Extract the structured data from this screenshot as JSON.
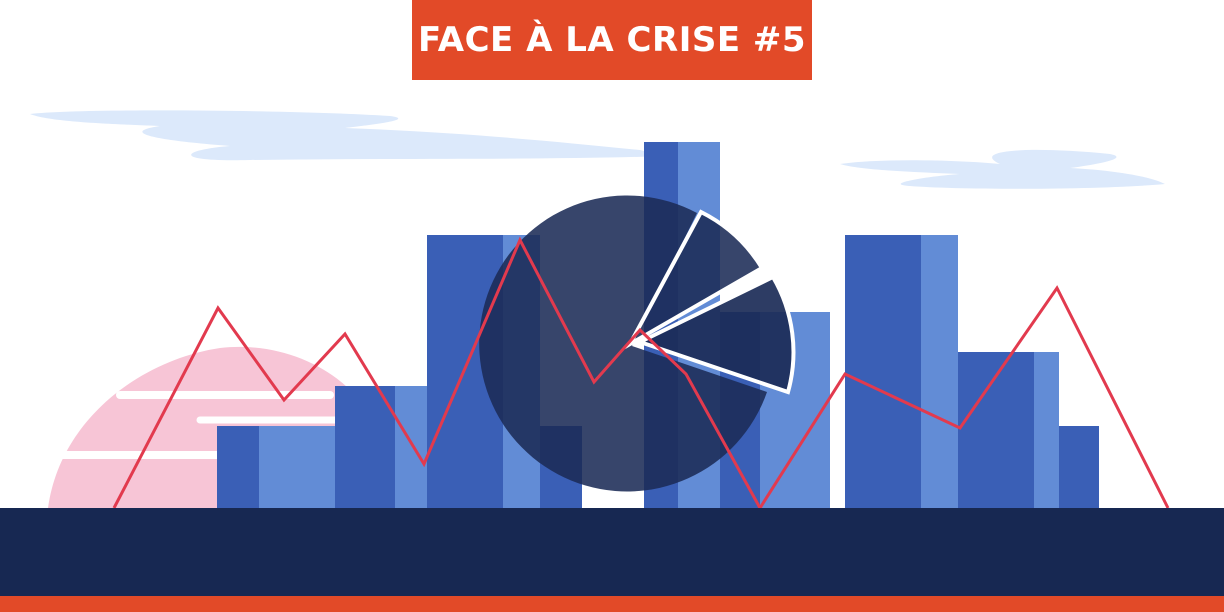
{
  "banner": {
    "title": "FACE À LA CRISE #5"
  },
  "colors": {
    "banner_orange": "#E24A28",
    "ground_navy": "#172852",
    "bottom_stripe": "#E24A28",
    "bar_dark": "#3A5FB6",
    "bar_light": "#628CD6",
    "pie_navy": "#1B2B57",
    "line_red": "#E23A4E",
    "cloud": "#DCE9FB",
    "sun_pink": "#F7C5D6"
  },
  "icons": {
    "illustration": "business-crisis-charts-illustration"
  }
}
